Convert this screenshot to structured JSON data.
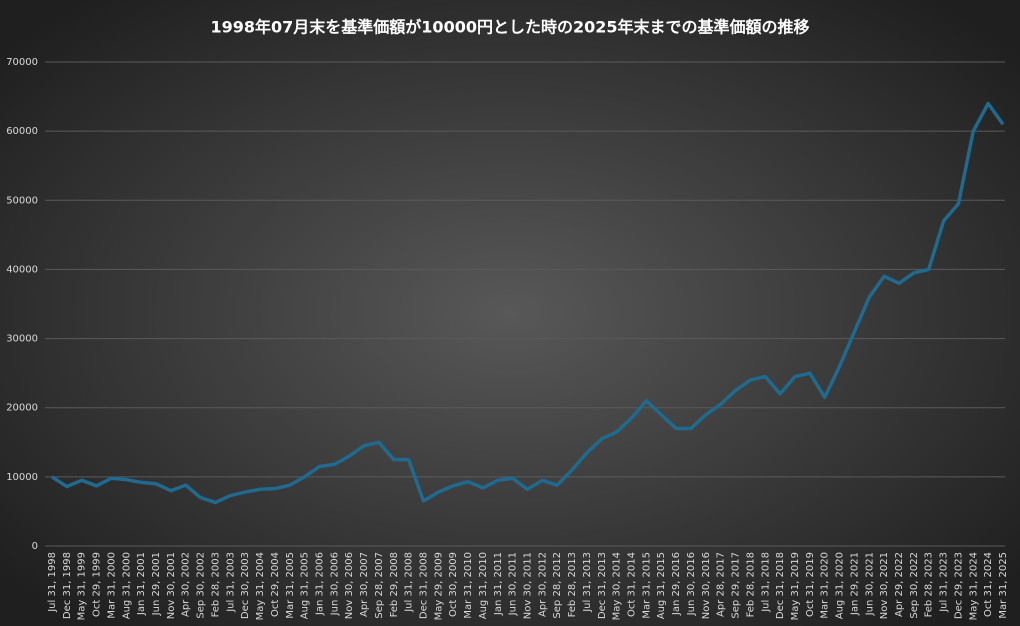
{
  "chart_data": {
    "type": "line",
    "title": "1998年07月末を基準価額が10000円とした時の2025年末までの基準価額の推移",
    "categories": [
      "Jul 31, 1998",
      "Dec 31, 1998",
      "May 31, 1999",
      "Oct 29, 1999",
      "Mar 31, 2000",
      "Aug 31, 2000",
      "Jan 31, 2001",
      "Jun 29, 2001",
      "Nov 30, 2001",
      "Apr 30, 2002",
      "Sep 30, 2002",
      "Feb 28, 2003",
      "Jul 31, 2003",
      "Dec 30, 2003",
      "May 31, 2004",
      "Oct 29, 2004",
      "Mar 31, 2005",
      "Aug 31, 2005",
      "Jan 31, 2006",
      "Jun 30, 2006",
      "Nov 30, 2006",
      "Apr 30, 2007",
      "Sep 28, 2007",
      "Feb 29, 2008",
      "Jul 31, 2008",
      "Dec 31, 2008",
      "May 29, 2009",
      "Oct 30, 2009",
      "Mar 31, 2010",
      "Aug 31, 2010",
      "Jan 31, 2011",
      "Jun 30, 2011",
      "Nov 30, 2011",
      "Apr 30, 2012",
      "Sep 28, 2012",
      "Feb 28, 2013",
      "Jul 31, 2013",
      "Dec 31, 2013",
      "May 30, 2014",
      "Oct 31, 2014",
      "Mar 31, 2015",
      "Aug 31, 2015",
      "Jan 29, 2016",
      "Jun 30, 2016",
      "Nov 30, 2016",
      "Apr 28, 2017",
      "Sep 29, 2017",
      "Feb 28, 2018",
      "Jul 31, 2018",
      "Dec 31, 2018",
      "May 31, 2019",
      "Oct 31, 2019",
      "Mar 31, 2020",
      "Aug 31, 2020",
      "Jan 29, 2021",
      "Jun 30, 2021",
      "Nov 30, 2021",
      "Apr 29, 2022",
      "Sep 30, 2022",
      "Feb 28, 2023",
      "Jul 31, 2023",
      "Dec 29, 2023",
      "May 31, 2024",
      "Oct 31, 2024",
      "Mar 31, 2025"
    ],
    "values": [
      10000,
      8600,
      9500,
      8700,
      9800,
      9600,
      9200,
      9000,
      8000,
      8800,
      7000,
      6300,
      7300,
      7800,
      8200,
      8300,
      8800,
      10000,
      11500,
      11800,
      13000,
      14500,
      15000,
      12500,
      12500,
      6500,
      7800,
      8700,
      9300,
      8400,
      9500,
      9800,
      8200,
      9500,
      8800,
      11000,
      13500,
      15500,
      16500,
      18500,
      21000,
      19000,
      17000,
      17000,
      19000,
      20500,
      22500,
      24000,
      24500,
      22000,
      24500,
      25000,
      21500,
      26000,
      31000,
      36000,
      39000,
      38000,
      39500,
      40000,
      47000,
      49500,
      60000,
      64000,
      61000
    ],
    "color": "#1f6a8e",
    "ylim": [
      0,
      70000
    ],
    "yticks": [
      0,
      10000,
      20000,
      30000,
      40000,
      50000,
      60000,
      70000
    ],
    "grid": true
  }
}
